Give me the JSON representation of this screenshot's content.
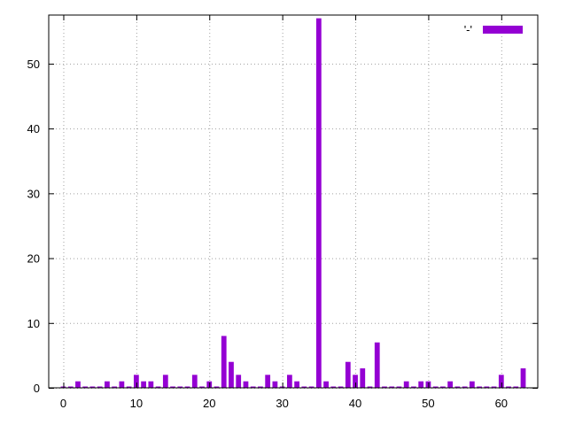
{
  "chart_data": {
    "type": "bar",
    "title": "",
    "xlabel": "",
    "ylabel": "",
    "xlim": [
      -2,
      65
    ],
    "ylim": [
      0,
      57.5
    ],
    "xticks": [
      0,
      10,
      20,
      30,
      40,
      50,
      60
    ],
    "yticks": [
      0,
      10,
      20,
      30,
      40,
      50
    ],
    "grid": true,
    "legend": {
      "position": "top-right"
    },
    "series": [
      {
        "name": "'-'",
        "color": "#9400d3",
        "x": [
          0,
          1,
          2,
          3,
          4,
          5,
          6,
          7,
          8,
          9,
          10,
          11,
          12,
          13,
          14,
          15,
          16,
          17,
          18,
          19,
          20,
          21,
          22,
          23,
          24,
          25,
          26,
          27,
          28,
          29,
          30,
          31,
          32,
          33,
          34,
          35,
          36,
          37,
          38,
          39,
          40,
          41,
          42,
          43,
          44,
          45,
          46,
          47,
          48,
          49,
          50,
          51,
          52,
          53,
          54,
          55,
          56,
          57,
          58,
          59,
          60,
          61,
          62,
          63
        ],
        "values": [
          0,
          0,
          1,
          0,
          0,
          0,
          1,
          0,
          1,
          0,
          2,
          1,
          1,
          0,
          2,
          0,
          0,
          0,
          2,
          0,
          1,
          0,
          8,
          4,
          2,
          1,
          0,
          0,
          2,
          1,
          0,
          2,
          1,
          0,
          0,
          57,
          1,
          0,
          0,
          4,
          2,
          3,
          0,
          7,
          0,
          0,
          0,
          1,
          0,
          1,
          1,
          0,
          0,
          1,
          0,
          0,
          1,
          0,
          0,
          0,
          2,
          0,
          0,
          3
        ]
      }
    ]
  }
}
